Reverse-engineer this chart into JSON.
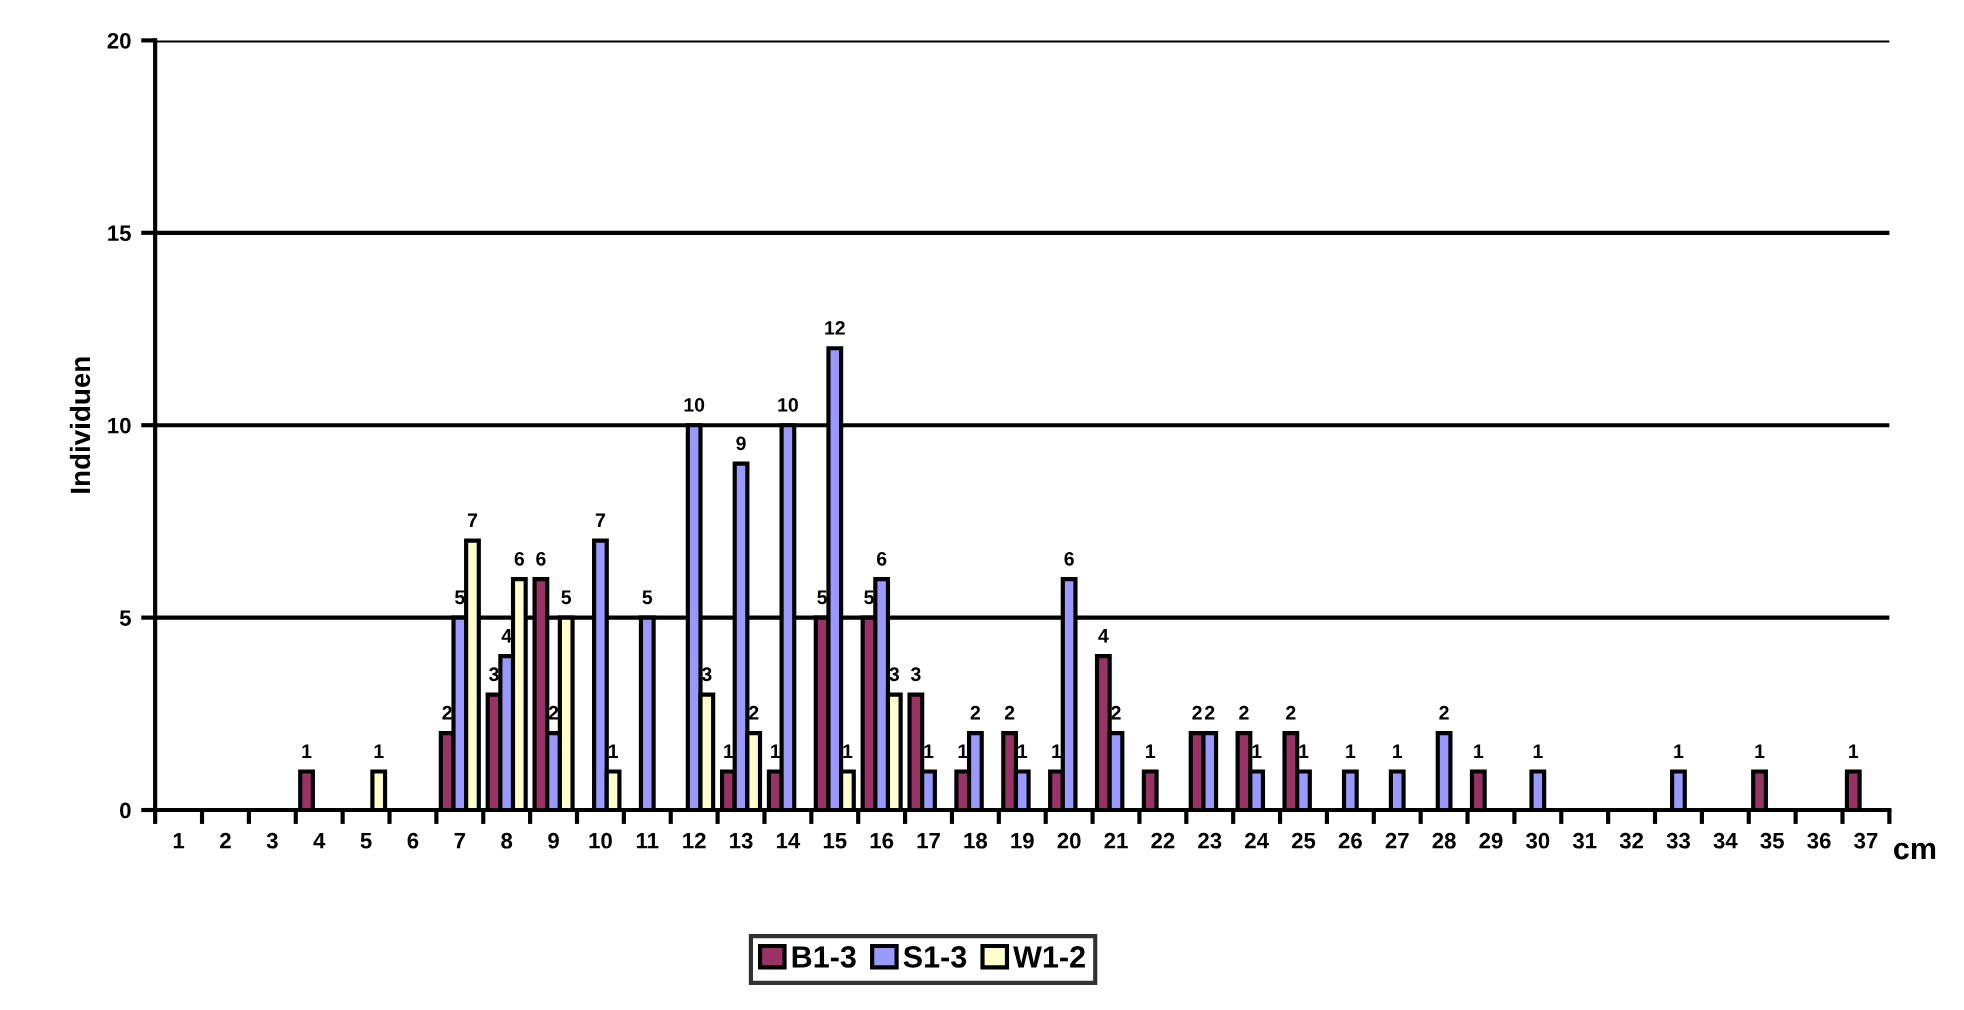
{
  "chart_data": {
    "type": "bar",
    "ylabel": "Individuen",
    "xlabel": "cm",
    "categories": [
      "1",
      "2",
      "3",
      "4",
      "5",
      "6",
      "7",
      "8",
      "9",
      "10",
      "11",
      "12",
      "13",
      "14",
      "15",
      "16",
      "17",
      "18",
      "19",
      "20",
      "21",
      "22",
      "23",
      "24",
      "25",
      "26",
      "27",
      "28",
      "29",
      "30",
      "31",
      "32",
      "33",
      "34",
      "35",
      "36",
      "37"
    ],
    "series": [
      {
        "name": "B1-3",
        "color": "#993366",
        "values": [
          null,
          null,
          null,
          1,
          null,
          null,
          2,
          3,
          6,
          null,
          null,
          null,
          1,
          1,
          5,
          5,
          3,
          1,
          2,
          1,
          4,
          1,
          2,
          2,
          2,
          null,
          null,
          null,
          1,
          null,
          null,
          null,
          null,
          null,
          1,
          null,
          1
        ]
      },
      {
        "name": "S1-3",
        "color": "#9999ff",
        "values": [
          null,
          null,
          null,
          null,
          null,
          null,
          5,
          4,
          2,
          7,
          5,
          10,
          9,
          10,
          12,
          6,
          1,
          2,
          1,
          6,
          2,
          null,
          2,
          1,
          1,
          1,
          1,
          2,
          null,
          1,
          null,
          null,
          1,
          null,
          null,
          null,
          null
        ]
      },
      {
        "name": "W1-2",
        "color": "#ffffcc",
        "values": [
          null,
          null,
          null,
          null,
          1,
          null,
          7,
          6,
          5,
          1,
          null,
          3,
          2,
          null,
          1,
          3,
          null,
          null,
          null,
          null,
          null,
          null,
          null,
          null,
          null,
          null,
          null,
          null,
          null,
          null,
          null,
          null,
          null,
          null,
          null,
          null,
          null
        ]
      }
    ],
    "ylim": [
      0,
      20
    ],
    "yticks": [
      0,
      5,
      10,
      15,
      20
    ],
    "grid": "y",
    "legend": "bottom",
    "data_labels": true
  }
}
